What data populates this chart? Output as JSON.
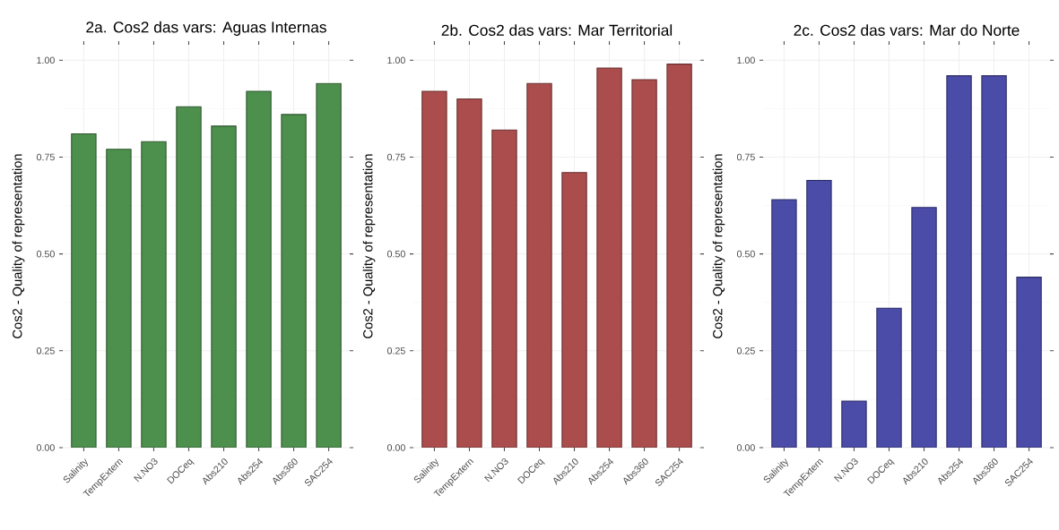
{
  "chart_data": [
    {
      "type": "bar",
      "title": "2a. Cos2 das vars: Aguas Internas",
      "ylabel": "Cos2 - Quality of representation",
      "categories": [
        "Salinity",
        "TempExtern",
        "N.NO3",
        "DOCeq",
        "Abs210",
        "Abs254",
        "Abs360",
        "SAC254"
      ],
      "values": [
        0.81,
        0.77,
        0.79,
        0.88,
        0.83,
        0.92,
        0.86,
        0.94
      ],
      "color": "#4d8f4d",
      "ylim": [
        0,
        1.04
      ],
      "yticks": [
        {
          "value": 0.125,
          "label": null
        },
        {
          "value": 0.375,
          "label": null
        },
        {
          "value": 0.625,
          "label": null
        },
        {
          "value": 0.875,
          "label": null
        },
        {
          "value": 0,
          "label": "0.00"
        },
        {
          "value": 0.25,
          "label": "0.25"
        },
        {
          "value": 0.5,
          "label": "0.50"
        },
        {
          "value": 0.75,
          "label": "0.75"
        },
        {
          "value": 1,
          "label": "1.00"
        }
      ],
      "grid": true
    },
    {
      "type": "bar",
      "title": "2b. Cos2 das vars: Mar Territorial",
      "ylabel": "Cos2 - Quality of representation",
      "categories": [
        "Salinity",
        "TempExtern",
        "N.NO3",
        "DOCeq",
        "Abs210",
        "Abs254",
        "Abs360",
        "SAC254"
      ],
      "values": [
        0.92,
        0.9,
        0.82,
        0.94,
        0.71,
        0.98,
        0.95,
        0.99
      ],
      "color": "#ab4d4d",
      "ylim": [
        0,
        1.04
      ],
      "yticks": [
        {
          "value": 0.125,
          "label": null
        },
        {
          "value": 0.375,
          "label": null
        },
        {
          "value": 0.625,
          "label": null
        },
        {
          "value": 0.875,
          "label": null
        },
        {
          "value": 0,
          "label": "0.00"
        },
        {
          "value": 0.25,
          "label": "0.25"
        },
        {
          "value": 0.5,
          "label": "0.50"
        },
        {
          "value": 0.75,
          "label": "0.75"
        },
        {
          "value": 1,
          "label": "1.00"
        }
      ],
      "grid": true
    },
    {
      "type": "bar",
      "title": "2c. Cos2 das vars: Mar do Norte",
      "ylabel": "Cos2 - Quality of representation",
      "categories": [
        "Salinity",
        "TempExtern",
        "N.NO3",
        "DOCeq",
        "Abs210",
        "Abs254",
        "Abs360",
        "SAC254"
      ],
      "values": [
        0.64,
        0.69,
        0.12,
        0.36,
        0.62,
        0.96,
        0.96,
        0.44
      ],
      "color": "#4b4ba8",
      "ylim": [
        0,
        1.04
      ],
      "yticks": [
        {
          "value": 0.125,
          "label": null
        },
        {
          "value": 0.375,
          "label": null
        },
        {
          "value": 0.625,
          "label": null
        },
        {
          "value": 0.875,
          "label": null
        },
        {
          "value": 0,
          "label": "0.00"
        },
        {
          "value": 0.25,
          "label": "0.25"
        },
        {
          "value": 0.5,
          "label": "0.50"
        },
        {
          "value": 0.75,
          "label": "0.75"
        },
        {
          "value": 1,
          "label": "1.00"
        }
      ],
      "grid": true
    }
  ]
}
